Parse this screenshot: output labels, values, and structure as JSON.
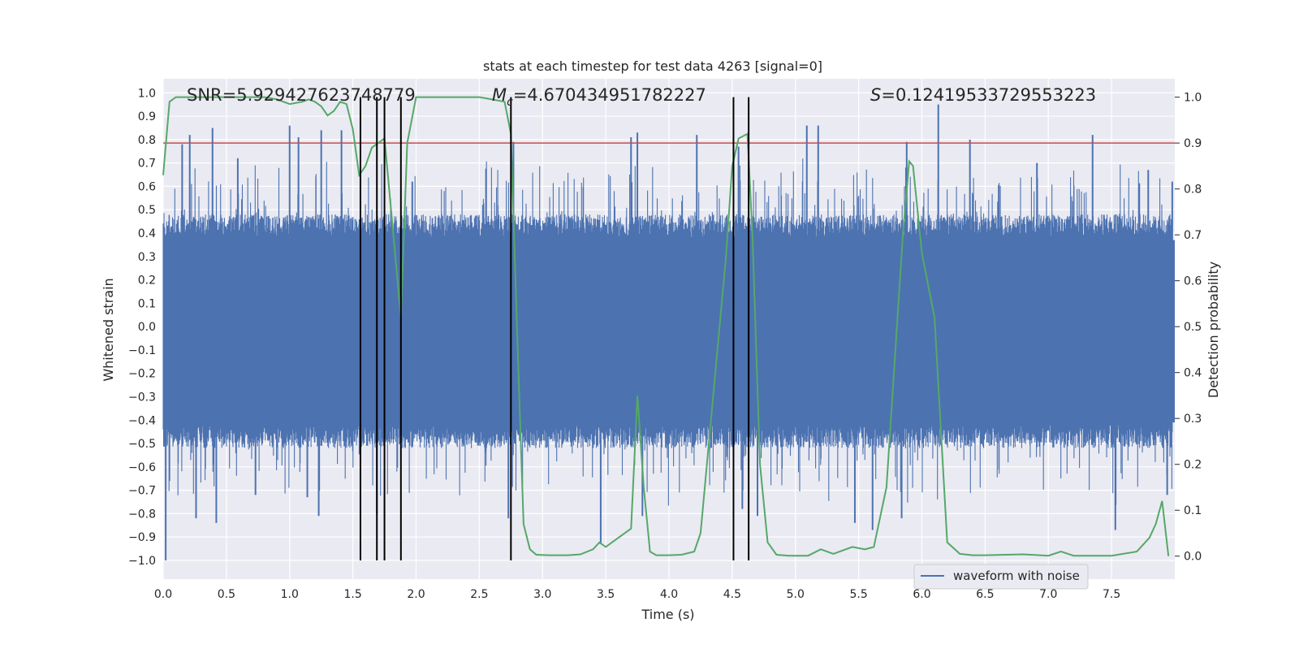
{
  "chart_data": {
    "type": "line",
    "title": "stats at each timestep for test data 4263 [signal=0]",
    "xlabel": "Time (s)",
    "ylabel_left": "Whitened strain",
    "ylabel_right": "Detection probability",
    "xlim": [
      0.0,
      8.0
    ],
    "ylim_left": [
      -1.08,
      1.06
    ],
    "ylim_right": [
      -0.05,
      1.04
    ],
    "x_ticks": [
      0.0,
      0.5,
      1.0,
      1.5,
      2.0,
      2.5,
      3.0,
      3.5,
      4.0,
      4.5,
      5.0,
      5.5,
      6.0,
      6.5,
      7.0,
      7.5
    ],
    "x_tick_labels": [
      "0.0",
      "0.5",
      "1.0",
      "1.5",
      "2.0",
      "2.5",
      "3.0",
      "3.5",
      "4.0",
      "4.5",
      "5.0",
      "5.5",
      "6.0",
      "6.5",
      "7.0",
      "7.5"
    ],
    "y_left_ticks": [
      1.0,
      0.9,
      0.8,
      0.7,
      0.6,
      0.5,
      0.4,
      0.3,
      0.2,
      0.1,
      0.0,
      -0.1,
      -0.2,
      -0.3,
      -0.4,
      -0.5,
      -0.6,
      -0.7,
      -0.8,
      -0.9,
      -1.0
    ],
    "y_left_tick_labels": [
      "1.0",
      "0.9",
      "0.8",
      "0.7",
      "0.6",
      "0.5",
      "0.4",
      "0.3",
      "0.2",
      "0.1",
      "0.0",
      "−0.1",
      "−0.2",
      "−0.3",
      "−0.4",
      "−0.5",
      "−0.6",
      "−0.7",
      "−0.8",
      "−0.9",
      "−1.0"
    ],
    "y_right_ticks": [
      1.0,
      0.9,
      0.8,
      0.7,
      0.6,
      0.5,
      0.4,
      0.3,
      0.2,
      0.1,
      0.0
    ],
    "y_right_tick_labels": [
      "1.0",
      "0.9",
      "0.8",
      "0.7",
      "0.6",
      "0.5",
      "0.4",
      "0.3",
      "0.2",
      "0.1",
      "0.0"
    ],
    "annotations": {
      "snr": "SNR=5.929427623748779",
      "mc_symbol": "M",
      "mc_sub": "c",
      "mc_value": "=4.670434951782227",
      "s_symbol": "S",
      "s_value": "=0.12419533729553223"
    },
    "threshold": 0.9,
    "event_lines_x": [
      1.56,
      1.69,
      1.75,
      1.88,
      2.75,
      4.51,
      4.63
    ],
    "event_lines_ymax": 0.91,
    "series": [
      {
        "name": "waveform with noise",
        "color": "#4c72b0",
        "axis": "left",
        "description": "whitened strain noise, dense band roughly -0.42..0.38 with spikes up to 0.95",
        "spikes": [
          [
            0.02,
            -1.0
          ],
          [
            0.15,
            0.78
          ],
          [
            0.21,
            0.82
          ],
          [
            0.26,
            -0.82
          ],
          [
            0.39,
            0.85
          ],
          [
            0.42,
            -0.84
          ],
          [
            0.59,
            0.72
          ],
          [
            0.73,
            -0.72
          ],
          [
            1.0,
            0.86
          ],
          [
            1.07,
            0.81
          ],
          [
            1.14,
            -0.73
          ],
          [
            1.25,
            0.84
          ],
          [
            1.23,
            -0.81
          ],
          [
            1.41,
            0.84
          ],
          [
            1.69,
            -0.8
          ],
          [
            1.97,
            0.62
          ],
          [
            2.77,
            0.79
          ],
          [
            2.73,
            -0.82
          ],
          [
            3.46,
            -0.93
          ],
          [
            3.75,
            0.83
          ],
          [
            3.7,
            0.81
          ],
          [
            3.79,
            -0.81
          ],
          [
            4.22,
            0.82
          ],
          [
            4.55,
            0.77
          ],
          [
            4.58,
            -0.78
          ],
          [
            4.7,
            -0.81
          ],
          [
            5.09,
            0.86
          ],
          [
            5.18,
            0.86
          ],
          [
            5.47,
            -0.84
          ],
          [
            5.61,
            -0.87
          ],
          [
            5.84,
            -0.82
          ],
          [
            5.88,
            0.79
          ],
          [
            6.13,
            0.95
          ],
          [
            6.38,
            0.8
          ],
          [
            6.91,
            0.7
          ],
          [
            7.35,
            0.82
          ],
          [
            7.53,
            -0.87
          ],
          [
            7.79,
            0.67
          ],
          [
            7.94,
            -0.72
          ],
          [
            7.98,
            0.62
          ]
        ]
      },
      {
        "name": "detection probability",
        "color": "#55a868",
        "axis": "right",
        "x": [
          0.0,
          0.05,
          0.1,
          0.2,
          0.3,
          0.4,
          0.5,
          0.6,
          0.7,
          0.8,
          0.9,
          1.0,
          1.1,
          1.15,
          1.2,
          1.25,
          1.3,
          1.35,
          1.4,
          1.45,
          1.5,
          1.55,
          1.6,
          1.65,
          1.75,
          1.8,
          1.88,
          1.93,
          2.0,
          2.1,
          2.2,
          2.3,
          2.4,
          2.5,
          2.6,
          2.7,
          2.75,
          2.8,
          2.85,
          2.9,
          2.95,
          3.05,
          3.2,
          3.3,
          3.4,
          3.45,
          3.5,
          3.6,
          3.7,
          3.75,
          3.8,
          3.85,
          3.9,
          4.0,
          4.1,
          4.2,
          4.25,
          4.3,
          4.35,
          4.45,
          4.5,
          4.55,
          4.62,
          4.66,
          4.72,
          4.78,
          4.85,
          4.95,
          5.1,
          5.2,
          5.3,
          5.35,
          5.45,
          5.55,
          5.62,
          5.72,
          5.85,
          5.9,
          5.93,
          6.0,
          6.1,
          6.2,
          6.3,
          6.4,
          6.5,
          6.8,
          7.0,
          7.1,
          7.2,
          7.3,
          7.5,
          7.7,
          7.8,
          7.85,
          7.9,
          7.95
        ],
        "y": [
          0.83,
          0.99,
          1.0,
          1.0,
          1.0,
          1.0,
          1.0,
          1.0,
          1.0,
          1.0,
          0.995,
          0.985,
          0.99,
          0.995,
          0.99,
          0.98,
          0.96,
          0.97,
          0.99,
          0.985,
          0.93,
          0.83,
          0.85,
          0.89,
          0.91,
          0.76,
          0.52,
          0.9,
          1.0,
          1.0,
          1.0,
          1.0,
          1.0,
          1.0,
          0.995,
          0.99,
          0.92,
          0.48,
          0.07,
          0.015,
          0.003,
          0.002,
          0.002,
          0.004,
          0.015,
          0.03,
          0.02,
          0.04,
          0.06,
          0.35,
          0.15,
          0.01,
          0.002,
          0.002,
          0.003,
          0.01,
          0.05,
          0.2,
          0.35,
          0.65,
          0.85,
          0.91,
          0.92,
          0.7,
          0.2,
          0.03,
          0.003,
          0.001,
          0.001,
          0.015,
          0.005,
          0.01,
          0.02,
          0.015,
          0.02,
          0.15,
          0.7,
          0.86,
          0.85,
          0.66,
          0.52,
          0.03,
          0.005,
          0.002,
          0.002,
          0.004,
          0.001,
          0.01,
          0.001,
          0.001,
          0.001,
          0.01,
          0.04,
          0.07,
          0.12,
          0.0
        ]
      },
      {
        "name": "threshold",
        "color": "#c44e52",
        "axis": "right",
        "value": 0.9
      }
    ],
    "legend": {
      "position": "lower-center-right",
      "entries": [
        {
          "label": "waveform with noise",
          "color": "#4c72b0"
        }
      ]
    },
    "grid": true,
    "style": {
      "background": "#eaeaf2",
      "grid_color": "#ffffff"
    }
  }
}
